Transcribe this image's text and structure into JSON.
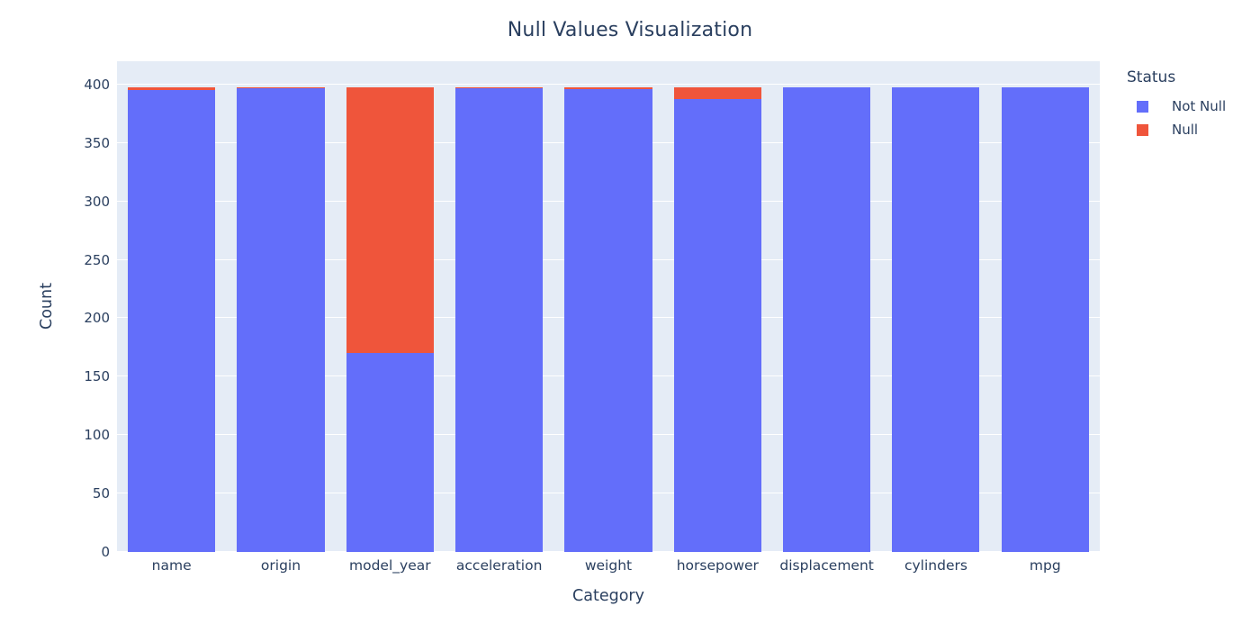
{
  "title": "Null Values Visualization",
  "legend": {
    "title": "Status",
    "items": [
      {
        "label": "Not Null",
        "color": "#636EFA"
      },
      {
        "label": "Null",
        "color": "#EF553B"
      }
    ]
  },
  "chart_data": {
    "type": "bar",
    "stacked": true,
    "title": "Null Values Visualization",
    "xlabel": "Category",
    "ylabel": "Count",
    "categories": [
      "name",
      "origin",
      "model_year",
      "acceleration",
      "weight",
      "horsepower",
      "displacement",
      "cylinders",
      "mpg"
    ],
    "series": [
      {
        "name": "Not Null",
        "color": "#636EFA",
        "values": [
          395,
          397,
          170,
          397,
          396,
          388,
          398,
          398,
          398
        ]
      },
      {
        "name": "Null",
        "color": "#EF553B",
        "values": [
          3,
          1,
          228,
          1,
          2,
          10,
          0,
          0,
          0
        ]
      }
    ],
    "yticks": [
      0,
      50,
      100,
      150,
      200,
      250,
      300,
      350,
      400
    ],
    "ylim": [
      0,
      420
    ],
    "grid": true,
    "legend_position": "right",
    "plot_bgcolor": "#E5ECF6",
    "grid_color": "#FFFFFF",
    "text_color": "#2a3f5f"
  }
}
